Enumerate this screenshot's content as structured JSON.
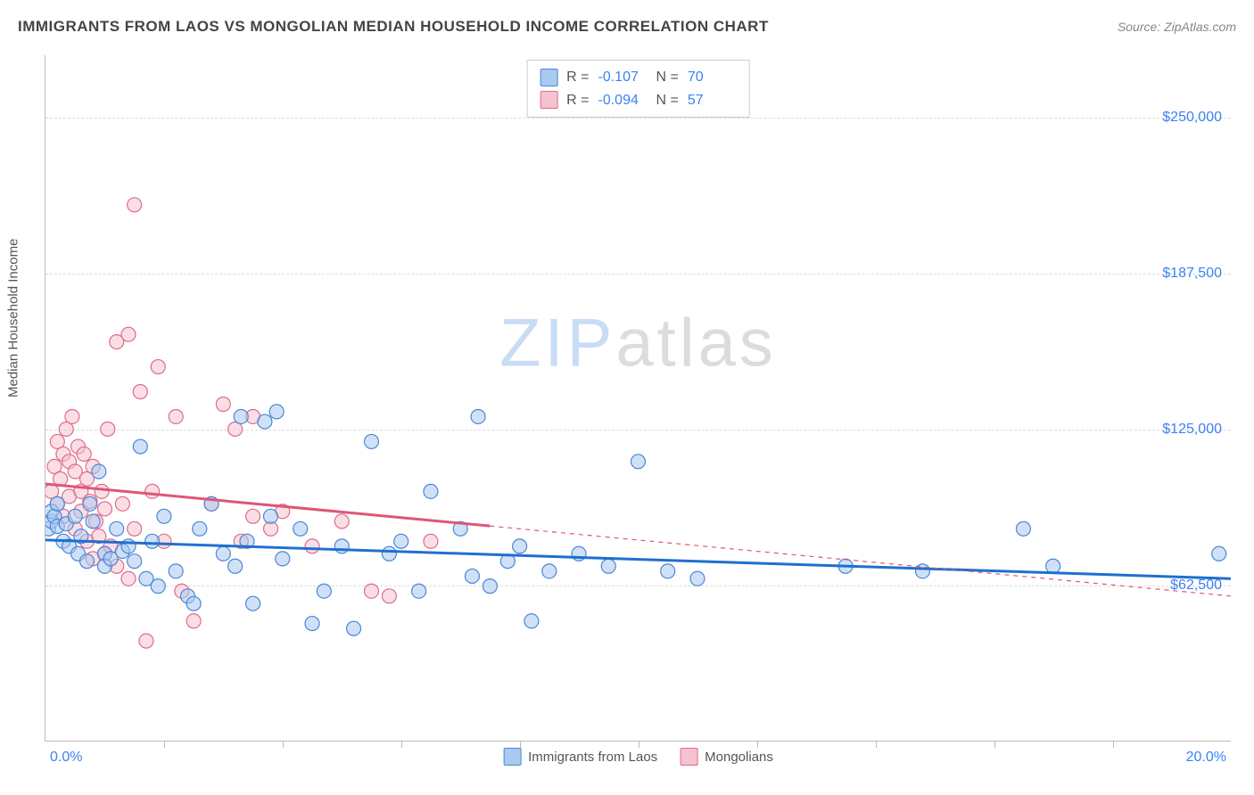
{
  "title": "IMMIGRANTS FROM LAOS VS MONGOLIAN MEDIAN HOUSEHOLD INCOME CORRELATION CHART",
  "source_label": "Source: ZipAtlas.com",
  "y_axis_title": "Median Household Income",
  "watermark": {
    "part1": "ZIP",
    "part2": "atlas"
  },
  "chart": {
    "type": "scatter",
    "xlim": [
      0,
      20
    ],
    "ylim": [
      0,
      275000
    ],
    "x_min_label": "0.0%",
    "x_max_label": "20.0%",
    "x_ticks": [
      2,
      4,
      6,
      8,
      10,
      12,
      14,
      16,
      18
    ],
    "y_gridlines": [
      {
        "value": 62500,
        "label": "$62,500"
      },
      {
        "value": 125000,
        "label": "$125,000"
      },
      {
        "value": 187500,
        "label": "$187,500"
      },
      {
        "value": 250000,
        "label": "$250,000"
      }
    ],
    "background_color": "#ffffff",
    "grid_color": "#dddddd",
    "axis_color": "#bbbbbb",
    "tick_color": "#3b82f6",
    "marker_radius": 8,
    "marker_opacity": 0.55,
    "line_width": 3,
    "series": [
      {
        "name": "Immigrants from Laos",
        "fill_color": "#a9c9f0",
        "stroke_color": "#4a86d4",
        "line_color": "#1f6fd1",
        "R": "-0.107",
        "N": "70",
        "trend": {
          "x1": 0,
          "y1": 80500,
          "x2": 20,
          "y2": 65000,
          "dash_from_x": 20
        },
        "points": [
          [
            0.05,
            85000
          ],
          [
            0.1,
            88000
          ],
          [
            0.1,
            92000
          ],
          [
            0.15,
            90000
          ],
          [
            0.2,
            86000
          ],
          [
            0.2,
            95000
          ],
          [
            0.3,
            80000
          ],
          [
            0.35,
            87000
          ],
          [
            0.4,
            78000
          ],
          [
            0.5,
            90000
          ],
          [
            0.55,
            75000
          ],
          [
            0.6,
            82000
          ],
          [
            0.7,
            72000
          ],
          [
            0.75,
            95000
          ],
          [
            0.8,
            88000
          ],
          [
            0.9,
            108000
          ],
          [
            1.0,
            75000
          ],
          [
            1.0,
            70000
          ],
          [
            1.1,
            73000
          ],
          [
            1.2,
            85000
          ],
          [
            1.3,
            76000
          ],
          [
            1.4,
            78000
          ],
          [
            1.5,
            72000
          ],
          [
            1.6,
            118000
          ],
          [
            1.7,
            65000
          ],
          [
            1.8,
            80000
          ],
          [
            1.9,
            62000
          ],
          [
            2.0,
            90000
          ],
          [
            2.2,
            68000
          ],
          [
            2.4,
            58000
          ],
          [
            2.5,
            55000
          ],
          [
            2.6,
            85000
          ],
          [
            2.8,
            95000
          ],
          [
            3.0,
            75000
          ],
          [
            3.2,
            70000
          ],
          [
            3.3,
            130000
          ],
          [
            3.4,
            80000
          ],
          [
            3.5,
            55000
          ],
          [
            3.7,
            128000
          ],
          [
            3.8,
            90000
          ],
          [
            3.9,
            132000
          ],
          [
            4.0,
            73000
          ],
          [
            4.3,
            85000
          ],
          [
            4.5,
            47000
          ],
          [
            4.7,
            60000
          ],
          [
            5.0,
            78000
          ],
          [
            5.2,
            45000
          ],
          [
            5.5,
            120000
          ],
          [
            5.8,
            75000
          ],
          [
            6.0,
            80000
          ],
          [
            6.3,
            60000
          ],
          [
            6.5,
            100000
          ],
          [
            7.0,
            85000
          ],
          [
            7.2,
            66000
          ],
          [
            7.3,
            130000
          ],
          [
            7.5,
            62000
          ],
          [
            7.8,
            72000
          ],
          [
            8.0,
            78000
          ],
          [
            8.2,
            48000
          ],
          [
            8.5,
            68000
          ],
          [
            9.0,
            75000
          ],
          [
            9.5,
            70000
          ],
          [
            10.0,
            112000
          ],
          [
            10.5,
            68000
          ],
          [
            11.0,
            65000
          ],
          [
            13.5,
            70000
          ],
          [
            14.8,
            68000
          ],
          [
            16.5,
            85000
          ],
          [
            17.0,
            70000
          ],
          [
            19.8,
            75000
          ]
        ]
      },
      {
        "name": "Mongolians",
        "fill_color": "#f5c2cf",
        "stroke_color": "#e06a8a",
        "line_color": "#e05577",
        "R": "-0.094",
        "N": "57",
        "trend": {
          "x1": 0,
          "y1": 103000,
          "x2": 20,
          "y2": 58000,
          "dash_from_x": 7.5
        },
        "points": [
          [
            0.1,
            100000
          ],
          [
            0.15,
            110000
          ],
          [
            0.2,
            95000
          ],
          [
            0.2,
            120000
          ],
          [
            0.25,
            105000
          ],
          [
            0.3,
            115000
          ],
          [
            0.3,
            90000
          ],
          [
            0.35,
            125000
          ],
          [
            0.4,
            98000
          ],
          [
            0.4,
            112000
          ],
          [
            0.45,
            130000
          ],
          [
            0.5,
            108000
          ],
          [
            0.5,
            85000
          ],
          [
            0.55,
            118000
          ],
          [
            0.6,
            100000
          ],
          [
            0.6,
            92000
          ],
          [
            0.65,
            115000
          ],
          [
            0.7,
            105000
          ],
          [
            0.7,
            80000
          ],
          [
            0.75,
            96000
          ],
          [
            0.8,
            110000
          ],
          [
            0.8,
            73000
          ],
          [
            0.85,
            88000
          ],
          [
            0.9,
            82000
          ],
          [
            0.95,
            100000
          ],
          [
            1.0,
            75000
          ],
          [
            1.0,
            93000
          ],
          [
            1.05,
            125000
          ],
          [
            1.1,
            78000
          ],
          [
            1.2,
            160000
          ],
          [
            1.2,
            70000
          ],
          [
            1.3,
            95000
          ],
          [
            1.4,
            163000
          ],
          [
            1.4,
            65000
          ],
          [
            1.5,
            215000
          ],
          [
            1.5,
            85000
          ],
          [
            1.6,
            140000
          ],
          [
            1.7,
            40000
          ],
          [
            1.8,
            100000
          ],
          [
            1.9,
            150000
          ],
          [
            2.0,
            80000
          ],
          [
            2.2,
            130000
          ],
          [
            2.3,
            60000
          ],
          [
            2.5,
            48000
          ],
          [
            2.8,
            95000
          ],
          [
            3.0,
            135000
          ],
          [
            3.2,
            125000
          ],
          [
            3.3,
            80000
          ],
          [
            3.5,
            130000
          ],
          [
            3.5,
            90000
          ],
          [
            3.8,
            85000
          ],
          [
            4.0,
            92000
          ],
          [
            4.5,
            78000
          ],
          [
            5.0,
            88000
          ],
          [
            5.5,
            60000
          ],
          [
            5.8,
            58000
          ],
          [
            6.5,
            80000
          ]
        ]
      }
    ]
  },
  "bottom_legend": [
    {
      "label": "Immigrants from Laos",
      "fill": "#a9c9f0",
      "stroke": "#4a86d4"
    },
    {
      "label": "Mongolians",
      "fill": "#f5c2cf",
      "stroke": "#e06a8a"
    }
  ]
}
